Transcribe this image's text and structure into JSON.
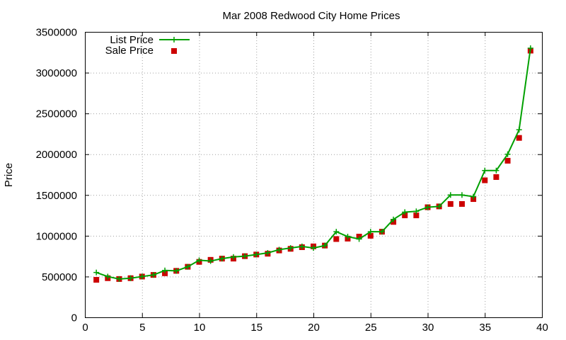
{
  "chart_data": {
    "type": "line",
    "title": "Mar 2008 Redwood City Home Prices",
    "xlabel": "",
    "ylabel": "Price",
    "xlim": [
      0,
      40
    ],
    "ylim": [
      0,
      3500000
    ],
    "x_ticks": [
      0,
      5,
      10,
      15,
      20,
      25,
      30,
      35,
      40
    ],
    "y_ticks": [
      0,
      500000,
      1000000,
      1500000,
      2000000,
      2500000,
      3000000,
      3500000
    ],
    "grid": true,
    "legend_position": "top-left",
    "x": [
      1,
      2,
      3,
      4,
      5,
      6,
      7,
      8,
      9,
      10,
      11,
      12,
      13,
      14,
      15,
      16,
      17,
      18,
      19,
      20,
      21,
      22,
      23,
      24,
      25,
      26,
      27,
      28,
      29,
      30,
      31,
      32,
      33,
      34,
      35,
      36,
      37,
      38,
      39
    ],
    "series": [
      {
        "name": "List Price",
        "style": "line-plus",
        "color": "#00a000",
        "values": [
          550000,
          500000,
          470000,
          480000,
          500000,
          520000,
          575000,
          570000,
          620000,
          700000,
          690000,
          720000,
          740000,
          750000,
          770000,
          790000,
          830000,
          850000,
          870000,
          850000,
          880000,
          1050000,
          990000,
          960000,
          1050000,
          1050000,
          1200000,
          1290000,
          1300000,
          1350000,
          1360000,
          1500000,
          1500000,
          1480000,
          1800000,
          1800000,
          2000000,
          2300000,
          3300000
        ]
      },
      {
        "name": "Sale Price",
        "style": "square",
        "color": "#cc0000",
        "values": [
          460000,
          480000,
          470000,
          480000,
          500000,
          520000,
          540000,
          570000,
          620000,
          680000,
          705000,
          720000,
          720000,
          750000,
          770000,
          780000,
          820000,
          840000,
          860000,
          870000,
          880000,
          960000,
          965000,
          990000,
          1000000,
          1050000,
          1170000,
          1250000,
          1250000,
          1350000,
          1360000,
          1390000,
          1390000,
          1450000,
          1680000,
          1720000,
          1920000,
          2200000,
          3270000
        ]
      }
    ]
  }
}
